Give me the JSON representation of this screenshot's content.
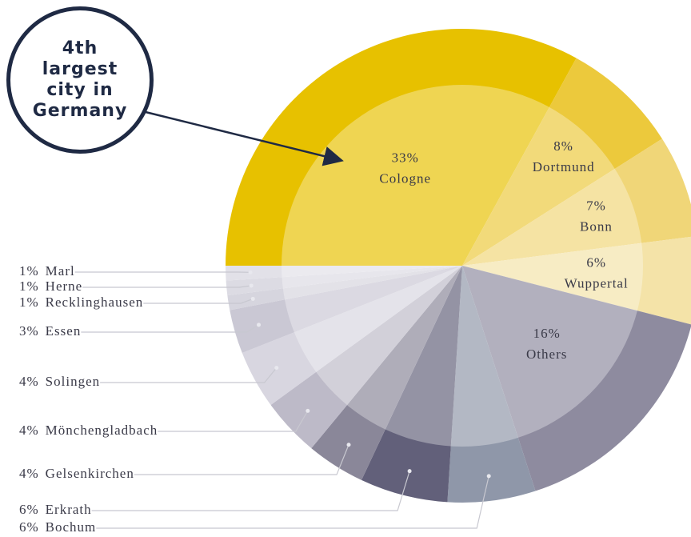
{
  "chart_data": {
    "type": "pie",
    "annotation": "4th largest city in Germany",
    "categories": [
      "Cologne",
      "Dortmund",
      "Bonn",
      "Wuppertal",
      "Others",
      "Bochum",
      "Erkrath",
      "Gelsenkirchen",
      "Mönchengladbach",
      "Solingen",
      "Essen",
      "Recklinghausen",
      "Herne",
      "Marl"
    ],
    "values": [
      33,
      8,
      7,
      6,
      16,
      6,
      6,
      4,
      4,
      4,
      3,
      1,
      1,
      1
    ],
    "value_labels": [
      "33%",
      "8%",
      "7%",
      "6%",
      "16%",
      "6%",
      "6%",
      "4%",
      "4%",
      "4%",
      "3%",
      "1%",
      "1%",
      "1%"
    ],
    "colors": [
      "#e7c100",
      "#ecc93c",
      "#f0d678",
      "#f4e3a8",
      "#8e8b9f",
      "#8f97a9",
      "#62607a",
      "#8a8799",
      "#bdbac8",
      "#d8d6e0",
      "#cac8d4",
      "#d6d5de",
      "#dcdbe3",
      "#e2e1e8"
    ]
  }
}
